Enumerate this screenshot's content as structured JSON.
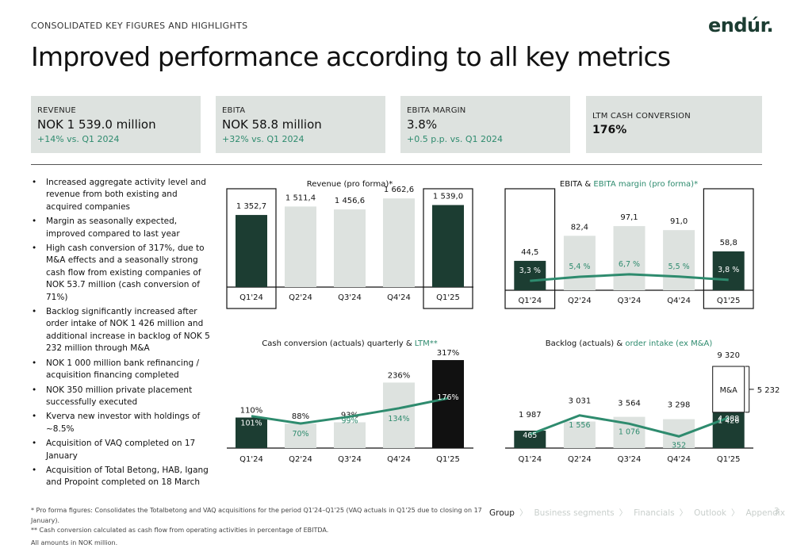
{
  "header": {
    "section_label": "CONSOLIDATED KEY FIGURES AND HIGHLIGHTS",
    "logo": "endúr.",
    "title": "Improved performance according to all key metrics"
  },
  "kpis": [
    {
      "label": "REVENUE",
      "value": "NOK 1 539.0 million",
      "change": "+14% vs. Q1 2024"
    },
    {
      "label": "EBITA",
      "value": "NOK 58.8 million",
      "change": "+32% vs. Q1 2024"
    },
    {
      "label": "EBITA MARGIN",
      "value": "3.8%",
      "change": "+0.5 p.p. vs. Q1 2024"
    },
    {
      "label": "LTM CASH CONVERSION",
      "value": "176%"
    }
  ],
  "bullets": [
    "Increased aggregate activity level and revenue from both existing and acquired companies",
    "Margin as seasonally expected, improved compared to last year",
    "High cash conversion of 317%, due to M&A effects and a seasonally strong cash flow from existing companies of NOK 53.7 million (cash conversion of 71%)",
    "Backlog significantly increased after order intake of NOK 1 426 million and additional increase in backlog of NOK 5 232 million through M&A",
    "NOK 1 000 million bank refinancing / acquisition financing completed",
    "NOK 350 million private placement successfully executed",
    "Kverva new investor with holdings of ~8.5%",
    "Acquisition of VAQ completed on 17 January",
    "Acquisition of Total Betong, HAB, Igang and Propoint completed on 18 March"
  ],
  "colors": {
    "dark": "#1c3d32",
    "light": "#dde2df",
    "accent": "#2e8b6e",
    "black": "#111111"
  },
  "chart_data": [
    {
      "id": "revenue",
      "type": "bar",
      "title": "Revenue (pro forma)*",
      "categories": [
        "Q1'24",
        "Q2'24",
        "Q3'24",
        "Q4'24",
        "Q1'25"
      ],
      "values": [
        1352.7,
        1511.4,
        1456.6,
        1662.6,
        1539.0
      ],
      "value_labels": [
        "1 352,7",
        "1 511,4",
        "1 456,6",
        "1 662,6",
        "1 539,0"
      ],
      "highlighted": [
        "Q1'24",
        "Q1'25"
      ]
    },
    {
      "id": "ebita",
      "type": "bar",
      "title_parts": [
        "EBITA & ",
        "EBITA margin (pro forma)*"
      ],
      "categories": [
        "Q1'24",
        "Q2'24",
        "Q3'24",
        "Q4'24",
        "Q1'25"
      ],
      "series": [
        {
          "name": "EBITA",
          "values": [
            44.5,
            82.4,
            97.1,
            91.0,
            58.8
          ],
          "labels": [
            "44,5",
            "82,4",
            "97,1",
            "91,0",
            "58,8"
          ]
        },
        {
          "name": "EBITA margin",
          "values": [
            3.3,
            5.4,
            6.7,
            5.5,
            3.8
          ],
          "labels": [
            "3,3 %",
            "5,4 %",
            "6,7 %",
            "5,5 %",
            "3,8 %"
          ]
        }
      ],
      "highlighted": [
        "Q1'24",
        "Q1'25"
      ]
    },
    {
      "id": "cash",
      "type": "bar",
      "title_parts": [
        "Cash conversion (actuals) quarterly & ",
        "LTM**"
      ],
      "categories": [
        "Q1'24",
        "Q2'24",
        "Q3'24",
        "Q4'24",
        "Q1'25"
      ],
      "series": [
        {
          "name": "Cash conversion quarterly",
          "values": [
            110,
            88,
            93,
            236,
            317
          ],
          "labels": [
            "110%",
            "88%",
            "93%",
            "236%",
            "317%"
          ]
        },
        {
          "name": "LTM",
          "values": [
            101,
            70,
            99,
            134,
            176
          ],
          "labels": [
            "101%",
            "70%",
            "99%",
            "134%",
            "176%"
          ]
        }
      ]
    },
    {
      "id": "backlog",
      "type": "bar",
      "title_parts": [
        "Backlog (actuals) & ",
        "order intake (ex M&A)"
      ],
      "categories": [
        "Q1'24",
        "Q2'24",
        "Q3'24",
        "Q4'24",
        "Q1'25"
      ],
      "series": [
        {
          "name": "Backlog",
          "values": [
            1987,
            3031,
            3564,
            3298,
            9320
          ],
          "labels": [
            "1 987",
            "3 031",
            "3 564",
            "3 298",
            "9 320"
          ]
        },
        {
          "name": "Order intake (ex M&A)",
          "values": [
            465,
            1556,
            1076,
            352,
            1426
          ],
          "labels": [
            "465",
            "1 556",
            "1 076",
            "352",
            "1 426"
          ]
        }
      ],
      "q1_25_breakdown": {
        "organic": 4088,
        "organic_label": "4 088",
        "ma_label": "M&A",
        "ma_value": 5232,
        "ma_value_label": "5 232"
      }
    }
  ],
  "footnotes": [
    "* Pro forma figures: Consolidates the Totalbetong and VAQ acquisitions for the period Q1'24–Q1'25 (VAQ actuals in Q1'25 due to closing on 17 January).",
    "** Cash conversion calculated as cash flow from operating activities in percentage of EBITDA.",
    "All amounts in NOK million."
  ],
  "nav": {
    "items": [
      "Group",
      "Business segments",
      "Financials",
      "Outlook",
      "Appendix"
    ],
    "active": "Group",
    "page_number": "3"
  }
}
